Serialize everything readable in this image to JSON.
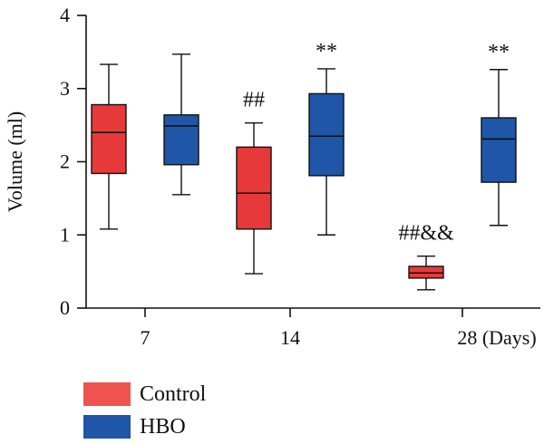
{
  "chart_data": {
    "type": "box",
    "ylabel": "Volume (ml)",
    "ylim": [
      0,
      4
    ],
    "yticks": [
      "0",
      "1",
      "2",
      "3",
      "4"
    ],
    "categories": [
      "7",
      "14",
      "28 (Days)"
    ],
    "series": [
      {
        "name": "Control",
        "color": "#e8393a",
        "legend_color": "#ef5350",
        "boxes": [
          {
            "min": 1.08,
            "q1": 1.84,
            "median": 2.4,
            "q3": 2.78,
            "max": 3.33
          },
          {
            "min": 0.47,
            "q1": 1.08,
            "median": 1.57,
            "q3": 2.2,
            "max": 2.53
          },
          {
            "min": 0.25,
            "q1": 0.41,
            "median": 0.48,
            "q3": 0.57,
            "max": 0.71
          }
        ]
      },
      {
        "name": "HBO",
        "color": "#1f56a8",
        "legend_color": "#1f56a8",
        "boxes": [
          {
            "min": 1.55,
            "q1": 1.96,
            "median": 2.49,
            "q3": 2.64,
            "max": 3.47
          },
          {
            "min": 1.0,
            "q1": 1.81,
            "median": 2.35,
            "q3": 2.93,
            "max": 3.27
          },
          {
            "min": 1.13,
            "q1": 1.72,
            "median": 2.31,
            "q3": 2.6,
            "max": 3.26
          }
        ]
      }
    ],
    "annotations": [
      {
        "text": "##",
        "series": 0,
        "group": 1
      },
      {
        "text": "**",
        "series": 1,
        "group": 1
      },
      {
        "text": "##&&",
        "series": 0,
        "group": 2
      },
      {
        "text": "**",
        "series": 1,
        "group": 2
      }
    ]
  }
}
